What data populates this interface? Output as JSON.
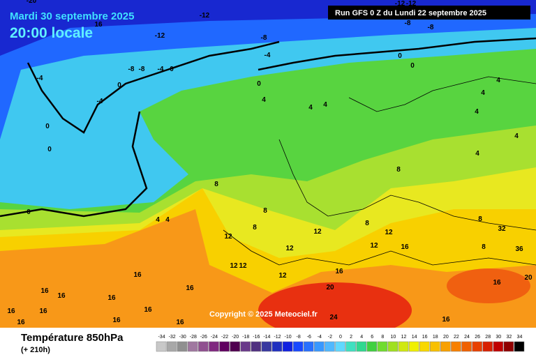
{
  "header": {
    "date": "Mardi 30 septembre 2025",
    "time": "20:00 locale",
    "run": "Run GFS 0 Z du Lundi 22 septembre 2025"
  },
  "copyright": "Copyright © 2025 Meteociel.fr",
  "footer": {
    "title": "Température 850hPa",
    "lead": "(+ 210h)"
  },
  "legend": {
    "ticks": [
      -34,
      -32,
      -30,
      -28,
      -26,
      -24,
      -22,
      -20,
      -18,
      -16,
      -14,
      -12,
      -10,
      -8,
      -6,
      -4,
      -2,
      0,
      2,
      4,
      6,
      8,
      10,
      12,
      14,
      16,
      18,
      20,
      22,
      24,
      26,
      28,
      30,
      32,
      34
    ],
    "colors": [
      "#c8c8c8",
      "#a8a8a8",
      "#909090",
      "#a078a0",
      "#905090",
      "#802880",
      "#600060",
      "#500050",
      "#6a3a8a",
      "#503080",
      "#3838a0",
      "#2030c0",
      "#1020e0",
      "#1848ff",
      "#2870ff",
      "#3898ff",
      "#50b8ff",
      "#60d8ff",
      "#40e0c0",
      "#30d890",
      "#40d040",
      "#70dc30",
      "#a0e020",
      "#d0e810",
      "#f0f000",
      "#f8d800",
      "#f8c000",
      "#f8a000",
      "#f88000",
      "#f06000",
      "#e84000",
      "#d82000",
      "#c00000",
      "#900000",
      "#000000"
    ]
  },
  "contour_labels": [
    "-20",
    "16",
    "-12",
    "-12",
    "-12",
    "-12",
    "-8",
    "-8",
    "-8",
    "-4",
    "-8",
    "-8",
    "-4",
    "0",
    "0",
    "0",
    "-4",
    "-4",
    "0",
    "0",
    "0",
    "0",
    "4",
    "4",
    "4",
    "0",
    "4",
    "4",
    "4",
    "4",
    "4",
    "4",
    "8",
    "8",
    "4",
    "8",
    "8",
    "8",
    "12",
    "12",
    "12",
    "12",
    "12",
    "12",
    "12",
    "16",
    "16",
    "12",
    "20",
    "24",
    "16",
    "16",
    "20",
    "8",
    "8",
    "32",
    "36",
    "16",
    "16",
    "16",
    "16",
    "16",
    "16",
    "16",
    "16",
    "16",
    "16",
    "16"
  ]
}
